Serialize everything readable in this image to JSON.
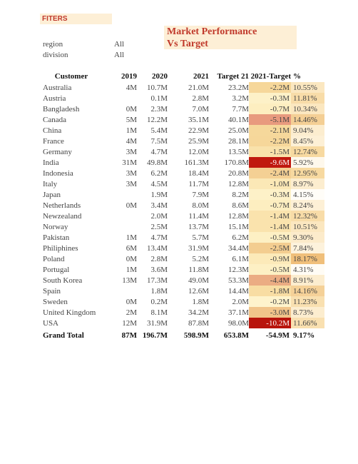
{
  "filters_label": "FITERS",
  "title_line1": "Market Performance",
  "title_line2": "Vs Target",
  "filters": [
    {
      "label": "region",
      "value": "All"
    },
    {
      "label": "division",
      "value": "All"
    }
  ],
  "columns": [
    "Customer",
    "2019",
    "2020",
    "2021",
    "Target 21",
    "2021-Target",
    "%"
  ],
  "rows": [
    {
      "customer": "Australia",
      "y2019": "4M",
      "y2020": "10.7M",
      "y2021": "21.0M",
      "target": "23.2M",
      "diff": "-2.2M",
      "pct": "10.55%",
      "diff_color": "#f6d79a",
      "pct_color": "#fbe7c0"
    },
    {
      "customer": "Austria",
      "y2019": "",
      "y2020": "0.1M",
      "y2021": "2.8M",
      "target": "3.2M",
      "diff": "-0.3M",
      "pct": "11.81%",
      "diff_color": "#fdf1c8",
      "pct_color": "#f8dca8"
    },
    {
      "customer": "Bangladesh",
      "y2019": "0M",
      "y2020": "2.3M",
      "y2021": "7.0M",
      "target": "7.7M",
      "diff": "-0.7M",
      "pct": "10.34%",
      "diff_color": "#fdeec0",
      "pct_color": "#fbe7c0"
    },
    {
      "customer": "Canada",
      "y2019": "5M",
      "y2020": "12.2M",
      "y2021": "35.1M",
      "target": "40.1M",
      "diff": "-5.1M",
      "pct": "14.46%",
      "diff_color": "#e89a7e",
      "pct_color": "#f4cf95"
    },
    {
      "customer": "China",
      "y2019": "1M",
      "y2020": "5.4M",
      "y2021": "22.9M",
      "target": "25.0M",
      "diff": "-2.1M",
      "pct": "9.04%",
      "diff_color": "#f6d89b",
      "pct_color": "#fcedcf"
    },
    {
      "customer": "France",
      "y2019": "4M",
      "y2020": "7.5M",
      "y2021": "25.9M",
      "target": "28.1M",
      "diff": "-2.2M",
      "pct": "8.45%",
      "diff_color": "#f6d79a",
      "pct_color": "#fdf0d6"
    },
    {
      "customer": "Germany",
      "y2019": "3M",
      "y2020": "4.7M",
      "y2021": "12.0M",
      "target": "13.5M",
      "diff": "-1.5M",
      "pct": "12.74%",
      "diff_color": "#f9e2ab",
      "pct_color": "#f7d9a0"
    },
    {
      "customer": "India",
      "y2019": "31M",
      "y2020": "49.8M",
      "y2021": "161.3M",
      "target": "170.8M",
      "diff": "-9.6M",
      "pct": "5.92%",
      "diff_color": "#c0190f",
      "pct_color": "#fef8ec"
    },
    {
      "customer": "Indonesia",
      "y2019": "3M",
      "y2020": "6.2M",
      "y2021": "18.4M",
      "target": "20.8M",
      "diff": "-2.4M",
      "pct": "12.95%",
      "diff_color": "#f4d094",
      "pct_color": "#f7d9a0"
    },
    {
      "customer": "Italy",
      "y2019": "3M",
      "y2020": "4.5M",
      "y2021": "11.7M",
      "target": "12.8M",
      "diff": "-1.0M",
      "pct": "8.97%",
      "diff_color": "#fbe8b6",
      "pct_color": "#fcedcf"
    },
    {
      "customer": "Japan",
      "y2019": "",
      "y2020": "1.9M",
      "y2021": "7.9M",
      "target": "8.2M",
      "diff": "-0.3M",
      "pct": "4.15%",
      "diff_color": "#fdf1c8",
      "pct_color": "#fffdf8"
    },
    {
      "customer": "Netherlands",
      "y2019": "0M",
      "y2020": "3.4M",
      "y2021": "8.0M",
      "target": "8.6M",
      "diff": "-0.7M",
      "pct": "8.24%",
      "diff_color": "#fdeec0",
      "pct_color": "#fdf0d6"
    },
    {
      "customer": "Newzealand",
      "y2019": "",
      "y2020": "2.0M",
      "y2021": "11.4M",
      "target": "12.8M",
      "diff": "-1.4M",
      "pct": "12.32%",
      "diff_color": "#fae3ad",
      "pct_color": "#f8dca8"
    },
    {
      "customer": "Norway",
      "y2019": "",
      "y2020": "2.5M",
      "y2021": "13.7M",
      "target": "15.1M",
      "diff": "-1.4M",
      "pct": "10.51%",
      "diff_color": "#fae3ad",
      "pct_color": "#fbe7c0"
    },
    {
      "customer": "Pakistan",
      "y2019": "1M",
      "y2020": "4.7M",
      "y2021": "5.7M",
      "target": "6.2M",
      "diff": "-0.5M",
      "pct": "9.30%",
      "diff_color": "#fdf0c4",
      "pct_color": "#fcebcb"
    },
    {
      "customer": "Philiphines",
      "y2019": "6M",
      "y2020": "13.4M",
      "y2021": "31.9M",
      "target": "34.4M",
      "diff": "-2.5M",
      "pct": "7.84%",
      "diff_color": "#f3cd90",
      "pct_color": "#fdf2dc"
    },
    {
      "customer": "Poland",
      "y2019": "0M",
      "y2020": "2.8M",
      "y2021": "5.2M",
      "target": "6.1M",
      "diff": "-0.9M",
      "pct": "18.17%",
      "diff_color": "#fceab9",
      "pct_color": "#f0bf7a"
    },
    {
      "customer": "Portugal",
      "y2019": "1M",
      "y2020": "3.6M",
      "y2021": "11.8M",
      "target": "12.3M",
      "diff": "-0.5M",
      "pct": "4.31%",
      "diff_color": "#fdf0c4",
      "pct_color": "#fffcf5"
    },
    {
      "customer": "South Korea",
      "y2019": "13M",
      "y2020": "17.3M",
      "y2021": "49.0M",
      "target": "53.3M",
      "diff": "-4.4M",
      "pct": "8.91%",
      "diff_color": "#ebac83",
      "pct_color": "#fcedcf"
    },
    {
      "customer": "Spain",
      "y2019": "",
      "y2020": "1.8M",
      "y2021": "12.6M",
      "target": "14.4M",
      "diff": "-1.8M",
      "pct": "14.16%",
      "diff_color": "#f8dda3",
      "pct_color": "#f5d198"
    },
    {
      "customer": "Sweden",
      "y2019": "0M",
      "y2020": "0.2M",
      "y2021": "1.8M",
      "target": "2.0M",
      "diff": "-0.2M",
      "pct": "11.23%",
      "diff_color": "#fef3cc",
      "pct_color": "#f9e0b0"
    },
    {
      "customer": "United Kingdom",
      "y2019": "2M",
      "y2020": "8.1M",
      "y2021": "34.2M",
      "target": "37.1M",
      "diff": "-3.0M",
      "pct": "8.73%",
      "diff_color": "#f1c48a",
      "pct_color": "#fcedcf"
    },
    {
      "customer": "USA",
      "y2019": "12M",
      "y2020": "31.9M",
      "y2021": "87.8M",
      "target": "98.0M",
      "diff": "-10.2M",
      "pct": "11.66%",
      "diff_color": "#b8140c",
      "pct_color": "#f9e0b0"
    }
  ],
  "total": {
    "customer": "Grand Total",
    "y2019": "87M",
    "y2020": "196.7M",
    "y2021": "598.9M",
    "target": "653.8M",
    "diff": "-54.9M",
    "pct": "9.17%"
  }
}
